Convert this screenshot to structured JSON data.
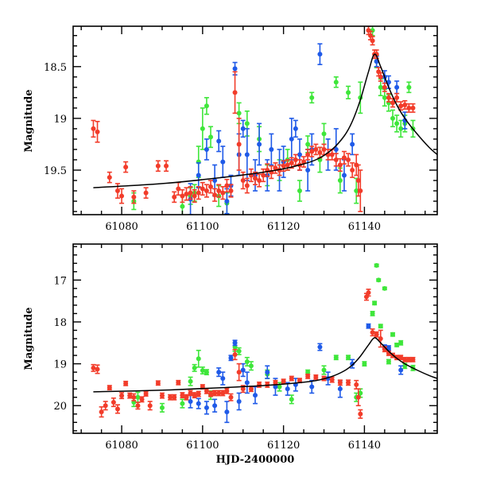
{
  "figure": {
    "xlabel": "HJD-2400000"
  },
  "colors": {
    "red": "#f23c2a",
    "green": "#3ee63a",
    "blue": "#1f5ae8",
    "model": "#000000"
  },
  "chart_data": [
    {
      "type": "scatter",
      "panel": "top",
      "title": "",
      "xlabel": "",
      "ylabel": "Magnitude",
      "xlim": [
        61068,
        61158
      ],
      "ylim": [
        19.93,
        18.11
      ],
      "y_inverted": true,
      "xticks": [
        61080,
        61100,
        61120,
        61140
      ],
      "xtick_labels": [
        "61080",
        "61100",
        "61120",
        "61140"
      ],
      "yticks": [
        18.5,
        19,
        19.5
      ],
      "ytick_labels": [
        "18.5",
        "19",
        "19.5"
      ],
      "grid": false,
      "legend": "none",
      "model_curve": {
        "name": "model",
        "x": [
          61073,
          61090,
          61105,
          61115,
          61122,
          61128,
          61132,
          61135,
          61137,
          61139,
          61141,
          61142.5,
          61144,
          61146,
          61148,
          61150,
          61153,
          61156,
          61158
        ],
        "y": [
          19.67,
          19.63,
          19.57,
          19.52,
          19.47,
          19.4,
          19.3,
          19.17,
          19.03,
          18.82,
          18.55,
          18.38,
          18.5,
          18.7,
          18.87,
          19.0,
          19.15,
          19.28,
          19.35
        ]
      },
      "series": [
        {
          "name": "red",
          "x": [
            61073,
            61074,
            61077,
            61079,
            61080,
            61081,
            61083,
            61086,
            61089,
            61091,
            61093,
            61094,
            61095,
            61096,
            61097,
            61098,
            61099,
            61100,
            61101,
            61102,
            61103,
            61104,
            61105,
            61106,
            61107,
            61108,
            61109,
            61110,
            61111,
            61112,
            61113,
            61114,
            61115,
            61116,
            61117,
            61118,
            61119,
            61120,
            61121,
            61122,
            61123,
            61124,
            61125,
            61126,
            61127,
            61128,
            61129,
            61130,
            61131,
            61132,
            61133,
            61134,
            61135,
            61136,
            61137,
            61138,
            61138.5,
            61139,
            61141,
            61141.5,
            61142,
            61142.5,
            61143,
            61143.5,
            61144,
            61145,
            61146,
            61147,
            61148,
            61149,
            61150,
            61151,
            61152
          ],
          "y": [
            19.1,
            19.13,
            19.57,
            19.7,
            19.75,
            19.47,
            19.76,
            19.72,
            19.46,
            19.46,
            19.76,
            19.68,
            19.75,
            19.73,
            19.72,
            19.75,
            19.72,
            19.68,
            19.7,
            19.66,
            19.74,
            19.7,
            19.72,
            19.65,
            19.7,
            18.75,
            19.25,
            19.6,
            19.65,
            19.55,
            19.58,
            19.6,
            19.55,
            19.5,
            19.52,
            19.48,
            19.5,
            19.46,
            19.45,
            19.43,
            19.4,
            19.45,
            19.42,
            19.35,
            19.32,
            19.3,
            19.33,
            19.3,
            19.35,
            19.35,
            19.4,
            19.45,
            19.38,
            19.4,
            19.5,
            19.45,
            19.6,
            19.7,
            18.15,
            18.2,
            18.25,
            18.38,
            18.38,
            18.55,
            18.6,
            18.7,
            18.8,
            18.85,
            18.8,
            18.88,
            18.87,
            18.9,
            18.9
          ],
          "yerr": [
            0.08,
            0.1,
            0.05,
            0.07,
            0.07,
            0.05,
            0.06,
            0.05,
            0.05,
            0.05,
            0.05,
            0.06,
            0.06,
            0.06,
            0.06,
            0.06,
            0.06,
            0.06,
            0.06,
            0.06,
            0.06,
            0.06,
            0.06,
            0.06,
            0.06,
            0.2,
            0.25,
            0.08,
            0.07,
            0.06,
            0.06,
            0.06,
            0.06,
            0.06,
            0.06,
            0.05,
            0.05,
            0.05,
            0.05,
            0.05,
            0.05,
            0.05,
            0.05,
            0.05,
            0.05,
            0.05,
            0.05,
            0.05,
            0.05,
            0.05,
            0.06,
            0.06,
            0.06,
            0.06,
            0.07,
            0.1,
            0.15,
            0.2,
            0.04,
            0.04,
            0.04,
            0.04,
            0.04,
            0.04,
            0.04,
            0.04,
            0.04,
            0.04,
            0.04,
            0.04,
            0.04,
            0.04,
            0.04
          ]
        },
        {
          "name": "green",
          "x": [
            61083,
            61095,
            61097,
            61098,
            61099,
            61100,
            61101,
            61102,
            61104,
            61106,
            61109,
            61111,
            61114,
            61116,
            61119,
            61121,
            61124,
            61126,
            61127,
            61129,
            61130,
            61133,
            61134,
            61136,
            61138,
            61139,
            61142,
            61143,
            61144,
            61145,
            61146,
            61147,
            61148,
            61149,
            61150,
            61151,
            61152
          ],
          "y": [
            19.8,
            19.85,
            19.75,
            19.72,
            19.42,
            19.1,
            18.88,
            19.18,
            19.75,
            19.82,
            18.95,
            19.05,
            19.2,
            19.55,
            19.5,
            19.4,
            19.7,
            19.25,
            18.8,
            19.4,
            19.15,
            18.65,
            19.6,
            18.75,
            19.7,
            18.8,
            18.15,
            18.45,
            18.7,
            18.8,
            18.85,
            19.0,
            19.05,
            19.1,
            19.05,
            18.7,
            19.1
          ],
          "yerr": [
            0.08,
            0.1,
            0.08,
            0.08,
            0.15,
            0.2,
            0.08,
            0.1,
            0.1,
            0.1,
            0.1,
            0.12,
            0.12,
            0.1,
            0.1,
            0.1,
            0.1,
            0.08,
            0.05,
            0.12,
            0.1,
            0.05,
            0.12,
            0.06,
            0.12,
            0.15,
            0.05,
            0.06,
            0.08,
            0.08,
            0.08,
            0.08,
            0.08,
            0.08,
            0.08,
            0.05,
            0.08
          ]
        },
        {
          "name": "blue",
          "x": [
            61097,
            61099,
            61101,
            61103,
            61104,
            61105,
            61106,
            61107,
            61108,
            61109,
            61110,
            61111,
            61113,
            61114,
            61116,
            61117,
            61119,
            61120,
            61122,
            61123,
            61124,
            61126,
            61127,
            61129,
            61131,
            61133,
            61135,
            61137,
            61143,
            61145,
            61146,
            61148,
            61150
          ],
          "y": [
            19.78,
            19.55,
            19.3,
            19.6,
            19.22,
            19.42,
            19.8,
            19.65,
            18.52,
            19.35,
            19.1,
            19.35,
            19.55,
            19.25,
            19.55,
            19.3,
            19.5,
            19.42,
            19.2,
            19.1,
            19.35,
            19.5,
            19.3,
            18.38,
            19.35,
            19.3,
            19.55,
            19.25,
            18.45,
            18.6,
            18.65,
            18.7,
            19.02
          ],
          "yerr": [
            0.15,
            0.12,
            0.1,
            0.15,
            0.1,
            0.15,
            0.12,
            0.1,
            0.06,
            0.2,
            0.08,
            0.25,
            0.15,
            0.2,
            0.15,
            0.15,
            0.2,
            0.15,
            0.2,
            0.08,
            0.15,
            0.2,
            0.15,
            0.1,
            0.15,
            0.2,
            0.15,
            0.1,
            0.05,
            0.06,
            0.06,
            0.06,
            0.08
          ]
        }
      ]
    },
    {
      "type": "scatter",
      "panel": "bottom",
      "title": "",
      "xlabel": "HJD-2400000",
      "ylabel": "Magnitude",
      "xlim": [
        61068,
        61158
      ],
      "ylim": [
        20.66,
        16.14
      ],
      "y_inverted": true,
      "xticks": [
        61080,
        61100,
        61120,
        61140
      ],
      "xtick_labels": [
        "61080",
        "61100",
        "61120",
        "61140"
      ],
      "yticks": [
        17,
        18,
        19,
        20
      ],
      "ytick_labels": [
        "17",
        "18",
        "19",
        "20"
      ],
      "grid": false,
      "legend": "none",
      "model_curve": {
        "name": "model",
        "x": [
          61073,
          61090,
          61105,
          61115,
          61122,
          61128,
          61132,
          61135,
          61137,
          61139,
          61141,
          61142.5,
          61144,
          61146,
          61148,
          61150,
          61153,
          61156,
          61158
        ],
        "y": [
          19.67,
          19.63,
          19.57,
          19.52,
          19.47,
          19.4,
          19.3,
          19.17,
          19.03,
          18.82,
          18.55,
          18.38,
          18.5,
          18.7,
          18.87,
          19.0,
          19.15,
          19.28,
          19.35
        ]
      },
      "series": [
        {
          "name": "red",
          "x": [
            61073,
            61074,
            61075,
            61076,
            61077,
            61078,
            61079,
            61080,
            61081,
            61082,
            61083,
            61084,
            61085,
            61086,
            61087,
            61089,
            61090,
            61092,
            61093,
            61094,
            61095,
            61096,
            61097,
            61098,
            61099,
            61100,
            61101,
            61102,
            61103,
            61104,
            61105,
            61106,
            61107,
            61108,
            61109,
            61110,
            61112,
            61114,
            61116,
            61118,
            61120,
            61122,
            61124,
            61126,
            61128,
            61130,
            61132,
            61134,
            61136,
            61138,
            61138.5,
            61139,
            61140.5,
            61141,
            61142,
            61143,
            61144,
            61145,
            61146,
            61147,
            61148,
            61149,
            61150,
            61151,
            61152
          ],
          "y": [
            19.1,
            19.13,
            20.15,
            20.0,
            19.57,
            19.92,
            20.08,
            19.76,
            19.47,
            19.76,
            19.8,
            20.0,
            19.85,
            19.72,
            20.0,
            19.46,
            19.76,
            19.8,
            19.8,
            19.45,
            19.75,
            19.8,
            19.7,
            19.75,
            19.72,
            19.55,
            19.65,
            19.72,
            19.7,
            19.7,
            19.7,
            19.65,
            19.8,
            18.78,
            19.2,
            19.6,
            19.6,
            19.5,
            19.5,
            19.45,
            19.42,
            19.35,
            19.4,
            19.3,
            19.32,
            19.35,
            19.38,
            19.45,
            19.45,
            19.5,
            19.8,
            20.2,
            17.4,
            17.3,
            18.25,
            18.3,
            18.4,
            18.65,
            18.75,
            18.8,
            18.85,
            18.85,
            18.9,
            18.9,
            18.9
          ],
          "yerr": [
            0.08,
            0.1,
            0.12,
            0.1,
            0.05,
            0.1,
            0.1,
            0.07,
            0.05,
            0.06,
            0.08,
            0.08,
            0.06,
            0.05,
            0.1,
            0.05,
            0.06,
            0.06,
            0.06,
            0.05,
            0.06,
            0.06,
            0.06,
            0.06,
            0.06,
            0.05,
            0.06,
            0.06,
            0.06,
            0.06,
            0.06,
            0.06,
            0.08,
            0.12,
            0.2,
            0.08,
            0.06,
            0.06,
            0.06,
            0.05,
            0.05,
            0.05,
            0.05,
            0.05,
            0.05,
            0.05,
            0.06,
            0.06,
            0.06,
            0.1,
            0.2,
            0.1,
            0.08,
            0.08,
            0.08,
            0.06,
            0.2,
            0.06,
            0.05,
            0.05,
            0.05,
            0.05,
            0.05,
            0.05,
            0.05
          ]
        },
        {
          "name": "green",
          "x": [
            61083,
            61084,
            61090,
            61095,
            61097,
            61098,
            61099,
            61100,
            61101,
            61102,
            61108,
            61109,
            61111,
            61112,
            61116,
            61119,
            61122,
            61126,
            61130,
            61133,
            61136,
            61138,
            61139,
            61140,
            61142,
            61142.5,
            61143,
            61143.5,
            61144,
            61145,
            61146,
            61147,
            61148,
            61149,
            61150,
            61152
          ],
          "y": [
            19.92,
            19.8,
            20.05,
            19.95,
            19.42,
            19.1,
            18.88,
            19.16,
            19.2,
            19.75,
            18.6,
            18.7,
            18.95,
            19.05,
            19.25,
            19.55,
            19.85,
            19.2,
            19.15,
            18.85,
            18.85,
            19.8,
            19.7,
            19.0,
            17.8,
            17.55,
            16.65,
            17.0,
            18.1,
            17.2,
            18.95,
            18.3,
            18.55,
            18.5,
            19.05,
            19.1
          ],
          "yerr": [
            0.1,
            0.12,
            0.1,
            0.1,
            0.1,
            0.08,
            0.2,
            0.08,
            0.06,
            0.1,
            0.1,
            0.08,
            0.1,
            0.1,
            0.1,
            0.1,
            0.1,
            0.05,
            0.1,
            0.05,
            0.05,
            0.1,
            0.1,
            0.05,
            0.05,
            0.04,
            0.03,
            0.03,
            0.04,
            0.03,
            0.05,
            0.04,
            0.04,
            0.05,
            0.06,
            0.06
          ]
        },
        {
          "name": "blue",
          "x": [
            61097,
            61099,
            61101,
            61103,
            61104,
            61105,
            61106,
            61107,
            61108,
            61109,
            61110,
            61111,
            61113,
            61116,
            61118,
            61121,
            61123,
            61127,
            61129,
            61131,
            61134,
            61137,
            61141,
            61145,
            61146,
            61149
          ],
          "y": [
            19.9,
            19.95,
            20.05,
            20.0,
            19.2,
            19.35,
            20.15,
            18.86,
            18.5,
            19.9,
            19.15,
            19.45,
            19.75,
            19.2,
            19.55,
            19.6,
            19.5,
            19.55,
            18.6,
            19.35,
            19.6,
            19.0,
            18.1,
            18.6,
            18.62,
            19.15
          ],
          "yerr": [
            0.15,
            0.12,
            0.15,
            0.15,
            0.1,
            0.15,
            0.25,
            0.06,
            0.06,
            0.2,
            0.15,
            0.25,
            0.2,
            0.15,
            0.2,
            0.15,
            0.15,
            0.15,
            0.08,
            0.15,
            0.2,
            0.1,
            0.05,
            0.05,
            0.05,
            0.1
          ]
        }
      ]
    }
  ]
}
